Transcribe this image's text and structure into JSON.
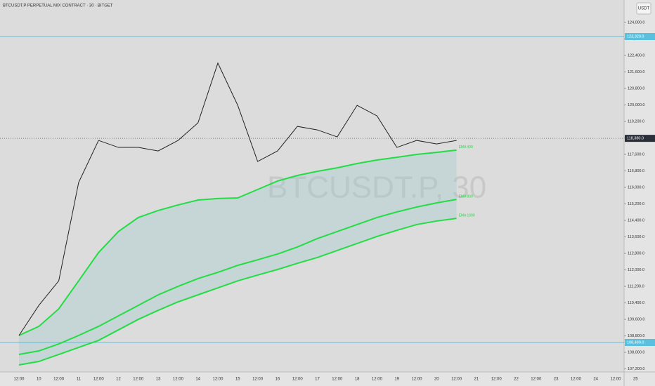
{
  "chart_data": {
    "type": "line",
    "title": "BTCUSDT.P PERPETUAL MIX CONTRACT · 30 · BITGET",
    "watermark": "BTCUSDT.P, 30",
    "currency_button": "USDT",
    "categories": [
      "12:00",
      "10",
      "12:00",
      "11",
      "12:00",
      "12",
      "12:00",
      "13",
      "12:00",
      "14",
      "12:00",
      "15",
      "12:00",
      "16",
      "12:00",
      "17",
      "12:00",
      "18",
      "12:00",
      "19",
      "12:00",
      "20",
      "12:00",
      "21",
      "12:00",
      "22",
      "12:00",
      "23",
      "12:00",
      "24",
      "12:00",
      "25"
    ],
    "values": [
      108820,
      110280,
      111470,
      116240,
      118280,
      117940,
      117940,
      117770,
      118280,
      119130,
      122030,
      119980,
      117260,
      117770,
      118960,
      118790,
      118450,
      119980,
      119470,
      117940,
      118280,
      118110,
      118280,
      null,
      null,
      null,
      null,
      null,
      null,
      null,
      null,
      null
    ],
    "color": "#222222",
    "series": [
      {
        "name": "EMA 400",
        "color": "#22dd44",
        "values": [
          108820,
          109260,
          110110,
          111470,
          112840,
          113860,
          114540,
          114880,
          115150,
          115390,
          115460,
          115490,
          115900,
          116310,
          116580,
          116780,
          116950,
          117160,
          117330,
          117460,
          117600,
          117700,
          117810,
          null,
          null,
          null,
          null,
          null,
          null,
          null,
          null,
          null
        ]
      },
      {
        "name": "EMA 800",
        "color": "#22dd44",
        "values": [
          107900,
          108070,
          108410,
          108820,
          109260,
          109770,
          110280,
          110790,
          111200,
          111580,
          111880,
          112220,
          112490,
          112770,
          113110,
          113520,
          113860,
          114200,
          114540,
          114810,
          115050,
          115250,
          115420,
          null,
          null,
          null,
          null,
          null,
          null,
          null,
          null,
          null
        ]
      },
      {
        "name": "EMA 1000",
        "color": "#22dd44",
        "values": [
          107390,
          107560,
          107900,
          108240,
          108580,
          109090,
          109600,
          110040,
          110450,
          110790,
          111130,
          111470,
          111750,
          112020,
          112320,
          112600,
          112940,
          113280,
          113620,
          113920,
          114200,
          114370,
          114500,
          null,
          null,
          null,
          null,
          null,
          null,
          null,
          null,
          null
        ]
      }
    ],
    "ylim": [
      107050,
      125090
    ],
    "yticks": [
      {
        "value": 107200,
        "label": "107,200.0"
      },
      {
        "value": 108000,
        "label": "108,000.0"
      },
      {
        "value": 108800,
        "label": "108,800.0"
      },
      {
        "value": 109600,
        "label": "109,600.0"
      },
      {
        "value": 110400,
        "label": "110,400.0"
      },
      {
        "value": 111200,
        "label": "111,200.0"
      },
      {
        "value": 112000,
        "label": "112,000.0"
      },
      {
        "value": 112800,
        "label": "112,800.0"
      },
      {
        "value": 113600,
        "label": "113,600.0"
      },
      {
        "value": 114400,
        "label": "114,400.0"
      },
      {
        "value": 115200,
        "label": "115,200.0"
      },
      {
        "value": 116000,
        "label": "116,000.0"
      },
      {
        "value": 116800,
        "label": "116,800.0"
      },
      {
        "value": 117600,
        "label": "117,600.0"
      },
      {
        "value": 118400,
        "label": "118,400.0"
      },
      {
        "value": 119200,
        "label": "119,200.0"
      },
      {
        "value": 120000,
        "label": "120,000.0"
      },
      {
        "value": 120800,
        "label": "120,800.0"
      },
      {
        "value": 121600,
        "label": "121,600.0"
      },
      {
        "value": 122400,
        "label": "122,400.0"
      },
      {
        "value": 123200,
        "label": "123,200.0"
      },
      {
        "value": 124000,
        "label": "124,000.0"
      }
    ],
    "levels": [
      {
        "value": 123320,
        "label": "123,320.0",
        "color": "#5bc0de"
      },
      {
        "value": 108480,
        "label": "108,480.0",
        "color": "#5bc0de"
      }
    ],
    "last_price": {
      "value": 118380,
      "label": "118,380.0"
    },
    "grid": false
  }
}
